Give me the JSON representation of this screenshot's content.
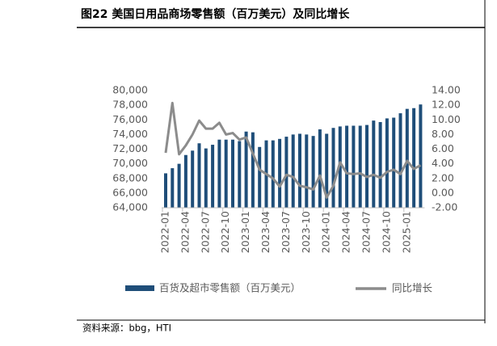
{
  "header": {
    "title": "图22 美国日用品商场零售额（百万美元）及同比增长"
  },
  "source": "资料来源：bbg，HTI",
  "chart_data": {
    "type": "bar_line",
    "categories": [
      "2022-01",
      null,
      null,
      "2022-04",
      null,
      null,
      "2022-07",
      null,
      null,
      "2022-10",
      null,
      null,
      "2023-01",
      null,
      null,
      "2023-04",
      null,
      null,
      "2023-07",
      null,
      null,
      "2023-10",
      null,
      null,
      "2024-01",
      null,
      null,
      "2024-04",
      null,
      null,
      "2024-07",
      null,
      null,
      "2024-10",
      null,
      null,
      "2025-01",
      null,
      null
    ],
    "series": [
      {
        "name": "百货及超市零售额（百万美元）",
        "color": "#1f4e79",
        "axis": "y",
        "values": [
          68700,
          69400,
          70000,
          71200,
          71800,
          72800,
          72100,
          72600,
          73300,
          73300,
          73300,
          73100,
          74400,
          74300,
          72300,
          73200,
          73200,
          73400,
          73700,
          74000,
          74100,
          74000,
          73800,
          74700,
          74100,
          74900,
          75100,
          75200,
          75200,
          75200,
          75300,
          75900,
          75700,
          76200,
          76300,
          76900,
          77500,
          77600,
          78100
        ]
      },
      {
        "name": "同比增长",
        "color": "#8c8c8c",
        "axis": "y2",
        "values": [
          5.5,
          12.3,
          5.3,
          6.5,
          8.0,
          9.9,
          8.8,
          8.8,
          9.6,
          8.0,
          8.2,
          7.3,
          7.6,
          5.4,
          3.2,
          2.6,
          2.0,
          0.9,
          2.5,
          2.2,
          1.0,
          0.8,
          0.5,
          2.4,
          -0.6,
          1.0,
          4.2,
          2.7,
          2.6,
          2.7,
          2.2,
          2.5,
          2.1,
          2.9,
          3.2,
          2.6,
          4.4,
          3.3,
          3.8
        ]
      }
    ],
    "ylim": [
      64000,
      80000
    ],
    "yticks": [
      {
        "value": 64000,
        "label": "64,000"
      },
      {
        "value": 66000,
        "label": "66,000"
      },
      {
        "value": 68000,
        "label": "68,000"
      },
      {
        "value": 70000,
        "label": "70,000"
      },
      {
        "value": 72000,
        "label": "72,000"
      },
      {
        "value": 74000,
        "label": "74,000"
      },
      {
        "value": 76000,
        "label": "76,000"
      },
      {
        "value": 78000,
        "label": "78,000"
      },
      {
        "value": 80000,
        "label": "80,000"
      }
    ],
    "y2lim": [
      -2,
      14
    ],
    "y2ticks": [
      {
        "value": -2,
        "label": "-2.00"
      },
      {
        "value": 0,
        "label": "0.00"
      },
      {
        "value": 2,
        "label": "2.00"
      },
      {
        "value": 4,
        "label": "4.00"
      },
      {
        "value": 6,
        "label": "6.00"
      },
      {
        "value": 8,
        "label": "8.00"
      },
      {
        "value": 10,
        "label": "10.00"
      },
      {
        "value": 12,
        "label": "12.00"
      },
      {
        "value": 14,
        "label": "14.00"
      }
    ]
  }
}
